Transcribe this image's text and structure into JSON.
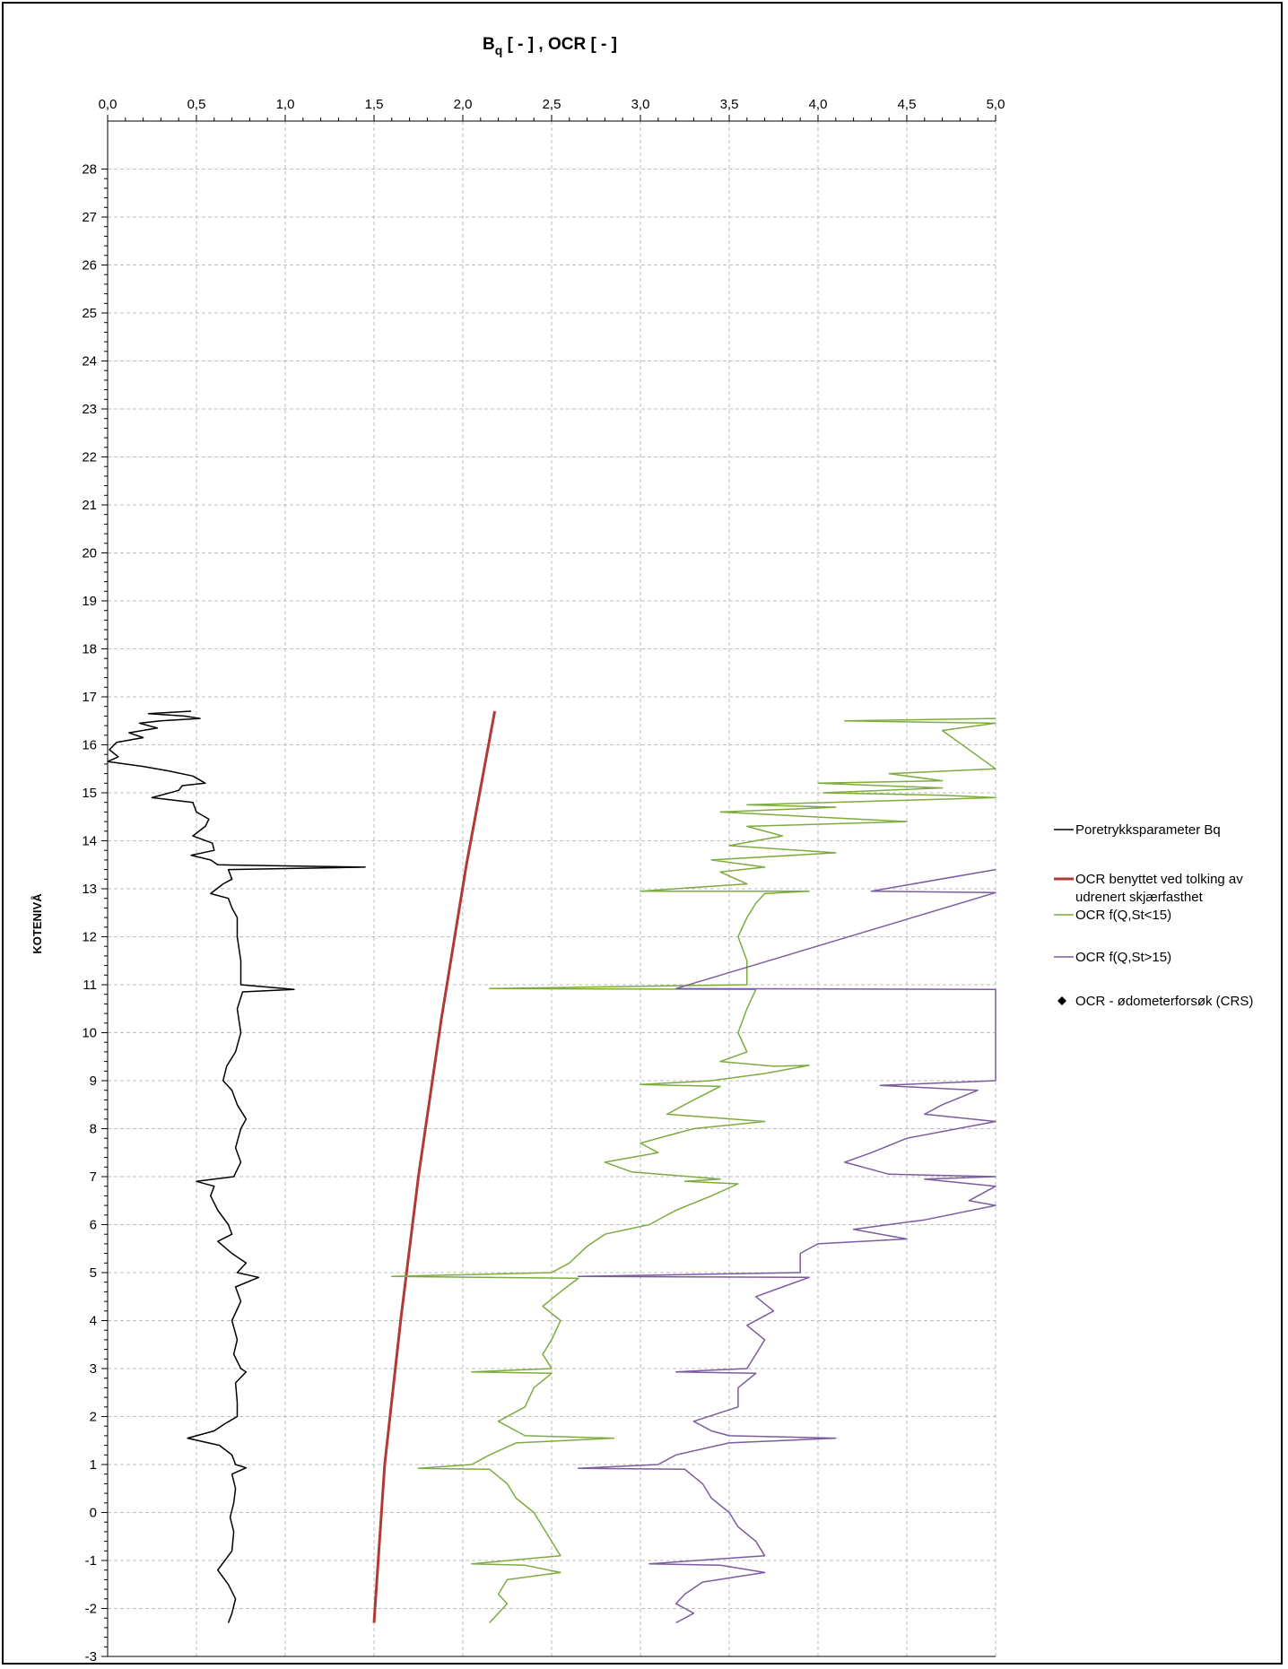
{
  "chart_data": {
    "type": "line",
    "title": "",
    "xlabel": "Bq [ - ] , OCR [ - ]",
    "xlabel_parts": {
      "base": "B",
      "sub": "q",
      "rest": " [ - ] , OCR [ - ]"
    },
    "ylabel": "KOTENIVÅ",
    "xlim": [
      0,
      5
    ],
    "ylim": [
      -3,
      29
    ],
    "x_axis_position": "top",
    "grid": true,
    "legend_position": "right",
    "x_ticks": [
      "0,0",
      "0,5",
      "1,0",
      "1,5",
      "2,0",
      "2,5",
      "3,0",
      "3,5",
      "4,0",
      "4,5",
      "5,0"
    ],
    "y_ticks": [
      "28",
      "27",
      "26",
      "25",
      "24",
      "23",
      "22",
      "21",
      "20",
      "19",
      "18",
      "17",
      "16",
      "15",
      "14",
      "13",
      "12",
      "11",
      "10",
      "9",
      "8",
      "7",
      "6",
      "5",
      "4",
      "3",
      "2",
      "1",
      "0",
      "-1",
      "-2",
      "-3"
    ],
    "series": [
      {
        "name": "Poretrykksparameter Bq",
        "color": "#000000",
        "points": [
          [
            0.47,
            16.7
          ],
          [
            0.23,
            16.65
          ],
          [
            0.43,
            16.6
          ],
          [
            0.52,
            16.55
          ],
          [
            0.3,
            16.5
          ],
          [
            0.18,
            16.45
          ],
          [
            0.28,
            16.35
          ],
          [
            0.12,
            16.25
          ],
          [
            0.2,
            16.15
          ],
          [
            0.05,
            16.05
          ],
          [
            0.01,
            15.9
          ],
          [
            0.06,
            15.75
          ],
          [
            0.0,
            15.65
          ],
          [
            0.2,
            15.55
          ],
          [
            0.35,
            15.45
          ],
          [
            0.48,
            15.35
          ],
          [
            0.55,
            15.2
          ],
          [
            0.42,
            15.15
          ],
          [
            0.4,
            15.05
          ],
          [
            0.25,
            14.9
          ],
          [
            0.48,
            14.8
          ],
          [
            0.5,
            14.6
          ],
          [
            0.57,
            14.45
          ],
          [
            0.55,
            14.3
          ],
          [
            0.48,
            14.1
          ],
          [
            0.59,
            13.95
          ],
          [
            0.6,
            13.8
          ],
          [
            0.47,
            13.7
          ],
          [
            0.58,
            13.6
          ],
          [
            0.62,
            13.5
          ],
          [
            1.45,
            13.45
          ],
          [
            0.68,
            13.4
          ],
          [
            0.7,
            13.2
          ],
          [
            0.65,
            13.1
          ],
          [
            0.58,
            12.9
          ],
          [
            0.68,
            12.8
          ],
          [
            0.7,
            12.6
          ],
          [
            0.73,
            12.4
          ],
          [
            0.73,
            12.0
          ],
          [
            0.75,
            11.5
          ],
          [
            0.75,
            11.0
          ],
          [
            1.05,
            10.9
          ],
          [
            0.76,
            10.85
          ],
          [
            0.73,
            10.5
          ],
          [
            0.75,
            10.0
          ],
          [
            0.72,
            9.6
          ],
          [
            0.67,
            9.3
          ],
          [
            0.65,
            9.0
          ],
          [
            0.7,
            8.8
          ],
          [
            0.73,
            8.5
          ],
          [
            0.78,
            8.2
          ],
          [
            0.75,
            8.0
          ],
          [
            0.72,
            7.6
          ],
          [
            0.75,
            7.3
          ],
          [
            0.71,
            7.0
          ],
          [
            0.5,
            6.9
          ],
          [
            0.6,
            6.8
          ],
          [
            0.58,
            6.6
          ],
          [
            0.62,
            6.3
          ],
          [
            0.68,
            6.0
          ],
          [
            0.7,
            5.8
          ],
          [
            0.62,
            5.65
          ],
          [
            0.7,
            5.4
          ],
          [
            0.78,
            5.2
          ],
          [
            0.73,
            5.0
          ],
          [
            0.85,
            4.9
          ],
          [
            0.72,
            4.7
          ],
          [
            0.75,
            4.4
          ],
          [
            0.7,
            4.0
          ],
          [
            0.73,
            3.6
          ],
          [
            0.71,
            3.3
          ],
          [
            0.75,
            3.0
          ],
          [
            0.78,
            2.93
          ],
          [
            0.72,
            2.7
          ],
          [
            0.73,
            2.3
          ],
          [
            0.73,
            2.0
          ],
          [
            0.66,
            1.85
          ],
          [
            0.6,
            1.7
          ],
          [
            0.45,
            1.55
          ],
          [
            0.63,
            1.4
          ],
          [
            0.7,
            1.2
          ],
          [
            0.72,
            1.0
          ],
          [
            0.78,
            0.93
          ],
          [
            0.7,
            0.8
          ],
          [
            0.72,
            0.5
          ],
          [
            0.71,
            0.2
          ],
          [
            0.69,
            -0.1
          ],
          [
            0.71,
            -0.4
          ],
          [
            0.7,
            -0.8
          ],
          [
            0.62,
            -1.2
          ],
          [
            0.68,
            -1.5
          ],
          [
            0.72,
            -1.8
          ],
          [
            0.7,
            -2.1
          ],
          [
            0.68,
            -2.3
          ]
        ]
      },
      {
        "name": "OCR benyttet ved tolking av udrenert skjærfasthet",
        "color": "#b03a35",
        "points": [
          [
            2.18,
            16.7
          ],
          [
            2.02,
            13.5
          ],
          [
            1.88,
            10.3
          ],
          [
            1.75,
            7.0
          ],
          [
            1.65,
            4.0
          ],
          [
            1.56,
            1.0
          ],
          [
            1.5,
            -2.3
          ]
        ]
      },
      {
        "name": "OCR f(Q,St<15)",
        "color": "#7dab3f",
        "points": [
          [
            5.0,
            16.55
          ],
          [
            4.15,
            16.5
          ],
          [
            5.0,
            16.45
          ],
          [
            4.7,
            16.3
          ],
          [
            5.0,
            15.5
          ],
          [
            4.4,
            15.4
          ],
          [
            4.7,
            15.25
          ],
          [
            4.0,
            15.2
          ],
          [
            4.7,
            15.1
          ],
          [
            4.03,
            15.0
          ],
          [
            4.7,
            14.95
          ],
          [
            5.0,
            14.9
          ],
          [
            3.6,
            14.75
          ],
          [
            4.1,
            14.7
          ],
          [
            3.45,
            14.6
          ],
          [
            4.5,
            14.4
          ],
          [
            3.6,
            14.3
          ],
          [
            3.8,
            14.1
          ],
          [
            3.5,
            13.9
          ],
          [
            4.1,
            13.75
          ],
          [
            3.4,
            13.6
          ],
          [
            3.7,
            13.45
          ],
          [
            3.45,
            13.35
          ],
          [
            3.6,
            13.1
          ],
          [
            3.0,
            12.95
          ],
          [
            3.95,
            12.95
          ],
          [
            3.7,
            12.9
          ],
          [
            3.65,
            12.7
          ],
          [
            3.6,
            12.4
          ],
          [
            3.55,
            12.0
          ],
          [
            3.6,
            11.5
          ],
          [
            3.6,
            11.0
          ],
          [
            2.15,
            10.92
          ],
          [
            3.65,
            10.9
          ],
          [
            3.6,
            10.5
          ],
          [
            3.55,
            10.0
          ],
          [
            3.6,
            9.6
          ],
          [
            3.45,
            9.4
          ],
          [
            3.75,
            9.3
          ],
          [
            3.95,
            9.32
          ],
          [
            3.7,
            9.15
          ],
          [
            3.4,
            9.0
          ],
          [
            3.0,
            8.92
          ],
          [
            3.45,
            8.88
          ],
          [
            3.3,
            8.6
          ],
          [
            3.15,
            8.3
          ],
          [
            3.7,
            8.15
          ],
          [
            3.3,
            8.0
          ],
          [
            3.0,
            7.7
          ],
          [
            3.1,
            7.5
          ],
          [
            2.8,
            7.3
          ],
          [
            2.95,
            7.1
          ],
          [
            3.45,
            6.95
          ],
          [
            3.25,
            6.9
          ],
          [
            3.55,
            6.85
          ],
          [
            3.4,
            6.6
          ],
          [
            3.2,
            6.3
          ],
          [
            3.05,
            6.0
          ],
          [
            2.8,
            5.8
          ],
          [
            2.7,
            5.55
          ],
          [
            2.6,
            5.2
          ],
          [
            2.5,
            5.0
          ],
          [
            1.6,
            4.92
          ],
          [
            2.65,
            4.88
          ],
          [
            2.55,
            4.6
          ],
          [
            2.45,
            4.3
          ],
          [
            2.55,
            4.0
          ],
          [
            2.5,
            3.6
          ],
          [
            2.45,
            3.3
          ],
          [
            2.5,
            3.0
          ],
          [
            2.05,
            2.93
          ],
          [
            2.5,
            2.9
          ],
          [
            2.4,
            2.6
          ],
          [
            2.35,
            2.2
          ],
          [
            2.2,
            1.9
          ],
          [
            2.3,
            1.7
          ],
          [
            2.35,
            1.6
          ],
          [
            2.85,
            1.55
          ],
          [
            2.3,
            1.45
          ],
          [
            2.15,
            1.2
          ],
          [
            2.05,
            1.0
          ],
          [
            1.75,
            0.92
          ],
          [
            2.15,
            0.9
          ],
          [
            2.25,
            0.6
          ],
          [
            2.3,
            0.3
          ],
          [
            2.4,
            0.0
          ],
          [
            2.45,
            -0.3
          ],
          [
            2.5,
            -0.6
          ],
          [
            2.55,
            -0.9
          ],
          [
            2.05,
            -1.07
          ],
          [
            2.35,
            -1.1
          ],
          [
            2.55,
            -1.25
          ],
          [
            2.25,
            -1.4
          ],
          [
            2.2,
            -1.7
          ],
          [
            2.25,
            -1.9
          ],
          [
            2.2,
            -2.1
          ],
          [
            2.15,
            -2.3
          ]
        ]
      },
      {
        "name": "OCR f(Q,St>15)",
        "color": "#7b5c9f",
        "points": [
          [
            5.0,
            13.4
          ],
          [
            4.3,
            12.95
          ],
          [
            5.0,
            12.92
          ],
          [
            3.2,
            10.92
          ],
          [
            5.0,
            10.9
          ],
          [
            5.0,
            9.0
          ],
          [
            4.35,
            8.9
          ],
          [
            4.9,
            8.8
          ],
          [
            4.7,
            8.5
          ],
          [
            4.6,
            8.3
          ],
          [
            5.0,
            8.15
          ],
          [
            4.5,
            7.8
          ],
          [
            4.3,
            7.5
          ],
          [
            4.15,
            7.3
          ],
          [
            4.4,
            7.05
          ],
          [
            5.0,
            7.0
          ],
          [
            4.6,
            6.95
          ],
          [
            5.0,
            6.8
          ],
          [
            4.85,
            6.5
          ],
          [
            5.0,
            6.4
          ],
          [
            4.6,
            6.1
          ],
          [
            4.2,
            5.9
          ],
          [
            4.5,
            5.7
          ],
          [
            4.0,
            5.6
          ],
          [
            3.9,
            5.4
          ],
          [
            3.9,
            5.0
          ],
          [
            2.65,
            4.92
          ],
          [
            3.95,
            4.9
          ],
          [
            3.8,
            4.7
          ],
          [
            3.65,
            4.5
          ],
          [
            3.75,
            4.2
          ],
          [
            3.6,
            3.9
          ],
          [
            3.7,
            3.6
          ],
          [
            3.65,
            3.3
          ],
          [
            3.6,
            3.0
          ],
          [
            3.2,
            2.93
          ],
          [
            3.65,
            2.9
          ],
          [
            3.55,
            2.6
          ],
          [
            3.55,
            2.2
          ],
          [
            3.3,
            1.9
          ],
          [
            3.4,
            1.7
          ],
          [
            3.5,
            1.6
          ],
          [
            4.1,
            1.55
          ],
          [
            3.5,
            1.45
          ],
          [
            3.2,
            1.2
          ],
          [
            3.1,
            1.0
          ],
          [
            2.65,
            0.92
          ],
          [
            3.25,
            0.9
          ],
          [
            3.35,
            0.6
          ],
          [
            3.4,
            0.3
          ],
          [
            3.5,
            0.0
          ],
          [
            3.55,
            -0.3
          ],
          [
            3.65,
            -0.6
          ],
          [
            3.7,
            -0.9
          ],
          [
            3.05,
            -1.07
          ],
          [
            3.45,
            -1.1
          ],
          [
            3.7,
            -1.25
          ],
          [
            3.35,
            -1.45
          ],
          [
            3.25,
            -1.7
          ],
          [
            3.2,
            -1.9
          ],
          [
            3.3,
            -2.1
          ],
          [
            3.2,
            -2.3
          ]
        ]
      },
      {
        "name": "OCR - ødometerforsøk (CRS)",
        "color": "#000000",
        "marker": "diamond",
        "points": []
      }
    ]
  }
}
